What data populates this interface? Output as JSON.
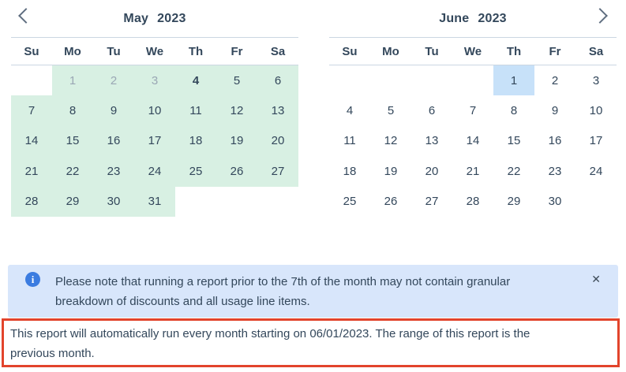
{
  "colors": {
    "text": "#33475b",
    "muted": "#9aa7b4",
    "range_green": "#d8f0e3",
    "selected_blue": "#c7e1f9",
    "banner_bg": "#d8e6fb",
    "info_blue": "#3b7ce0",
    "alert_red": "#e2442c",
    "divider": "#cbd6e2"
  },
  "icons": {
    "prev": "chevron-left",
    "next": "chevron-right",
    "info_glyph": "i",
    "close_glyph": "✕"
  },
  "calendars": [
    {
      "title_month": "May",
      "title_year": "2023",
      "day_names": [
        "Su",
        "Mo",
        "Tu",
        "We",
        "Th",
        "Fr",
        "Sa"
      ],
      "weeks": [
        [
          {
            "d": ""
          },
          {
            "d": "1",
            "range": true,
            "muted": true
          },
          {
            "d": "2",
            "range": true,
            "muted": true
          },
          {
            "d": "3",
            "range": true,
            "muted": true
          },
          {
            "d": "4",
            "range": true,
            "today": true
          },
          {
            "d": "5",
            "range": true
          },
          {
            "d": "6",
            "range": true
          }
        ],
        [
          {
            "d": "7",
            "range": true
          },
          {
            "d": "8",
            "range": true
          },
          {
            "d": "9",
            "range": true
          },
          {
            "d": "10",
            "range": true
          },
          {
            "d": "11",
            "range": true
          },
          {
            "d": "12",
            "range": true
          },
          {
            "d": "13",
            "range": true
          }
        ],
        [
          {
            "d": "14",
            "range": true
          },
          {
            "d": "15",
            "range": true
          },
          {
            "d": "16",
            "range": true
          },
          {
            "d": "17",
            "range": true
          },
          {
            "d": "18",
            "range": true
          },
          {
            "d": "19",
            "range": true
          },
          {
            "d": "20",
            "range": true
          }
        ],
        [
          {
            "d": "21",
            "range": true
          },
          {
            "d": "22",
            "range": true
          },
          {
            "d": "23",
            "range": true
          },
          {
            "d": "24",
            "range": true
          },
          {
            "d": "25",
            "range": true
          },
          {
            "d": "26",
            "range": true
          },
          {
            "d": "27",
            "range": true
          }
        ],
        [
          {
            "d": "28",
            "range": true
          },
          {
            "d": "29",
            "range": true
          },
          {
            "d": "30",
            "range": true
          },
          {
            "d": "31",
            "range": true
          },
          {
            "d": ""
          },
          {
            "d": ""
          },
          {
            "d": ""
          }
        ]
      ]
    },
    {
      "title_month": "June",
      "title_year": "2023",
      "day_names": [
        "Su",
        "Mo",
        "Tu",
        "We",
        "Th",
        "Fr",
        "Sa"
      ],
      "weeks": [
        [
          {
            "d": ""
          },
          {
            "d": ""
          },
          {
            "d": ""
          },
          {
            "d": ""
          },
          {
            "d": "1",
            "selected": true
          },
          {
            "d": "2"
          },
          {
            "d": "3"
          }
        ],
        [
          {
            "d": "4"
          },
          {
            "d": "5"
          },
          {
            "d": "6"
          },
          {
            "d": "7"
          },
          {
            "d": "8"
          },
          {
            "d": "9"
          },
          {
            "d": "10"
          }
        ],
        [
          {
            "d": "11"
          },
          {
            "d": "12"
          },
          {
            "d": "13"
          },
          {
            "d": "14"
          },
          {
            "d": "15"
          },
          {
            "d": "16"
          },
          {
            "d": "17"
          }
        ],
        [
          {
            "d": "18"
          },
          {
            "d": "19"
          },
          {
            "d": "20"
          },
          {
            "d": "21"
          },
          {
            "d": "22"
          },
          {
            "d": "23"
          },
          {
            "d": "24"
          }
        ],
        [
          {
            "d": "25"
          },
          {
            "d": "26"
          },
          {
            "d": "27"
          },
          {
            "d": "28"
          },
          {
            "d": "29"
          },
          {
            "d": "30"
          },
          {
            "d": ""
          }
        ]
      ]
    }
  ],
  "banner": {
    "lines": [
      "Please note that running a report prior to the 7th of the month may not contain granular",
      "breakdown of discounts and all usage line items."
    ]
  },
  "note": {
    "lines": [
      "This report will automatically run every month starting on 06/01/2023. The range of this report is the",
      "previous month."
    ]
  }
}
